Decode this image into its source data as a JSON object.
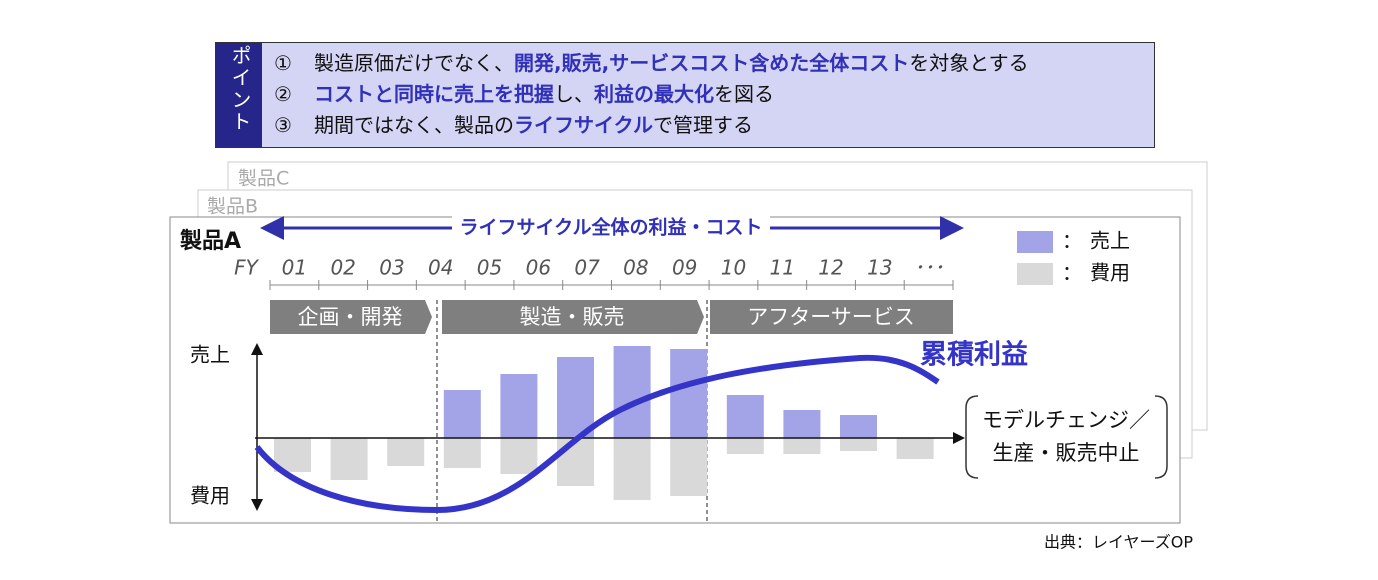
{
  "points": {
    "label": "ポイント",
    "items": [
      {
        "number": "①",
        "segments": [
          {
            "text": "製造原価だけでなく、",
            "bold": false
          },
          {
            "text": "開発,販売,サービスコスト含めた全体コスト",
            "bold": true
          },
          {
            "text": "を対象とする",
            "bold": false
          }
        ]
      },
      {
        "number": "②",
        "segments": [
          {
            "text": "コストと同時に売上を把握",
            "bold": true
          },
          {
            "text": "し、",
            "bold": false
          },
          {
            "text": "利益の最大化",
            "bold": true
          },
          {
            "text": "を図る",
            "bold": false
          }
        ]
      },
      {
        "number": "③",
        "segments": [
          {
            "text": "期間ではなく、製品の",
            "bold": false
          },
          {
            "text": "ライフサイクル",
            "bold": true
          },
          {
            "text": "で管理する",
            "bold": false
          }
        ]
      }
    ]
  },
  "products": [
    "製品C",
    "製品B",
    "製品A"
  ],
  "chart_data": {
    "type": "bar",
    "fy_label": "FY",
    "fy": [
      "01",
      "02",
      "03",
      "04",
      "05",
      "06",
      "07",
      "08",
      "09",
      "10",
      "11",
      "12",
      "13",
      "･･･"
    ],
    "span_label": "ライフサイクル全体の利益・コスト",
    "phases": [
      "企画・開発",
      "製造・販売",
      "アフターサービス"
    ],
    "y_labels": {
      "top": "売上",
      "bottom": "費用"
    },
    "series": [
      {
        "name": "売上",
        "color": "#a3a3e8",
        "values": [
          null,
          null,
          null,
          48,
          64,
          81,
          92,
          89,
          43,
          28,
          23,
          null
        ]
      },
      {
        "name": "費用",
        "color": "#d9d9d9",
        "values": [
          -34,
          -42,
          -28,
          -30,
          -36,
          -48,
          -62,
          -58,
          -16,
          -16,
          -13,
          -21
        ]
      }
    ],
    "legend_prefix": "：",
    "curve_label": "累積利益",
    "callout": [
      "モデルチェンジ／",
      "生産・販売中止"
    ],
    "ylim": [
      -70,
      100
    ]
  },
  "source": "出典：レイヤーズOP"
}
